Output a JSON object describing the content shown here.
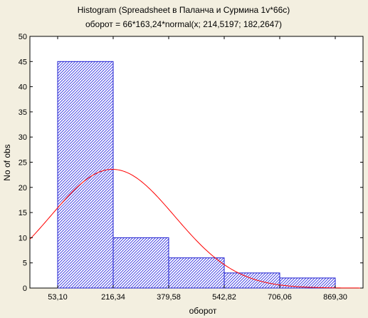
{
  "chart_data": {
    "type": "bar",
    "title": "Histogram (Spreadsheet в Паланча и Сурмина 1v*66c)",
    "subtitle": "оборот = 66*163,24*normal(x; 214,5197; 182,2647)",
    "xlabel": "оборот",
    "ylabel": "No of obs",
    "x_ticks": [
      "53,10",
      "216,34",
      "379,58",
      "542,82",
      "706,06",
      "869,30"
    ],
    "x_tick_values": [
      53.1,
      216.34,
      379.58,
      542.82,
      706.06,
      869.3
    ],
    "xlim": [
      -28.52,
      950.92
    ],
    "ylim": [
      0,
      50
    ],
    "y_ticks": [
      0,
      5,
      10,
      15,
      20,
      25,
      30,
      35,
      40,
      45,
      50
    ],
    "bins": [
      {
        "start": 53.1,
        "end": 216.34,
        "count": 45
      },
      {
        "start": 216.34,
        "end": 379.58,
        "count": 10
      },
      {
        "start": 379.58,
        "end": 542.82,
        "count": 6
      },
      {
        "start": 542.82,
        "end": 706.06,
        "count": 3
      },
      {
        "start": 706.06,
        "end": 869.3,
        "count": 2
      }
    ],
    "fit": {
      "distribution": "normal",
      "n": 66,
      "bin_width": 163.24,
      "mean": 214.5197,
      "sd": 182.2647
    },
    "colors": {
      "bar_hatch": "#3030e0",
      "bar_fill": "#ffffff",
      "bar_edge": "#2020d0",
      "curve": "#ff0000",
      "plot_bg": "#ffffff",
      "background": "#f3efe0"
    }
  }
}
